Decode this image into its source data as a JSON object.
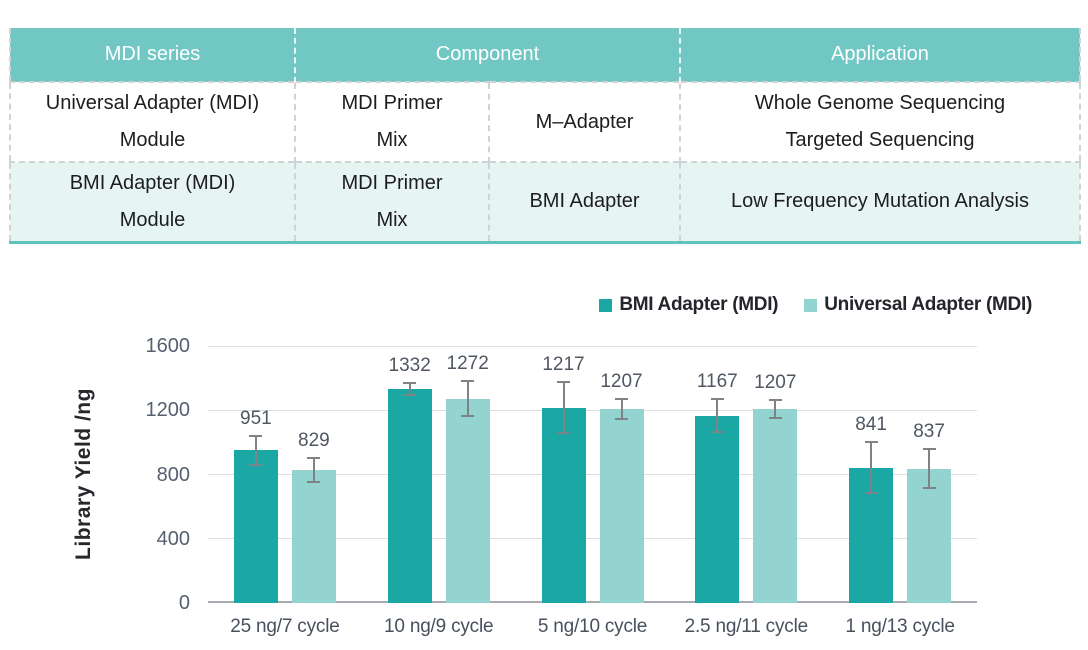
{
  "table": {
    "headers": {
      "series": "MDI series",
      "component": "Component",
      "application": "Application"
    },
    "rows": [
      {
        "series": "Universal Adapter (MDI)\nModule",
        "component1": "MDI Primer\nMix",
        "component2": "M–Adapter",
        "application": "Whole Genome Sequencing\nTargeted Sequencing"
      },
      {
        "series": "BMI Adapter (MDI)\nModule",
        "component1": "MDI Primer\nMix",
        "component2": "BMI Adapter",
        "application": "Low Frequency Mutation Analysis"
      }
    ]
  },
  "colors": {
    "series1": "#1ba8a5",
    "series2": "#93d4d1",
    "table_header_bg": "#71c7c3",
    "table_alt_row_bg": "#e6f4f2",
    "table_bottom_border": "#60c2bd",
    "gridline": "#dcdfe1",
    "baseline": "#a6acb2",
    "error_bar": "#7e8386"
  },
  "chart_data": {
    "type": "bar",
    "title": "",
    "xlabel": "",
    "ylabel": "Library Yield /ng",
    "ylim": [
      0,
      1600
    ],
    "yticks": [
      0,
      400,
      800,
      1200,
      1600
    ],
    "grid": true,
    "legend_position": "top-right",
    "categories": [
      "25 ng/7 cycle",
      "10 ng/9 cycle",
      "5 ng/10 cycle",
      "2.5 ng/11 cycle",
      "1 ng/13 cycle"
    ],
    "series": [
      {
        "name": "BMI Adapter (MDI)",
        "color": "#1ba8a5",
        "values": [
          951,
          1332,
          1217,
          1167,
          841
        ],
        "errors": [
          95,
          45,
          165,
          110,
          165
        ]
      },
      {
        "name": "Universal Adapter (MDI)",
        "color": "#93d4d1",
        "values": [
          829,
          1272,
          1207,
          1207,
          837
        ],
        "errors": [
          80,
          115,
          70,
          62,
          125
        ]
      }
    ]
  }
}
